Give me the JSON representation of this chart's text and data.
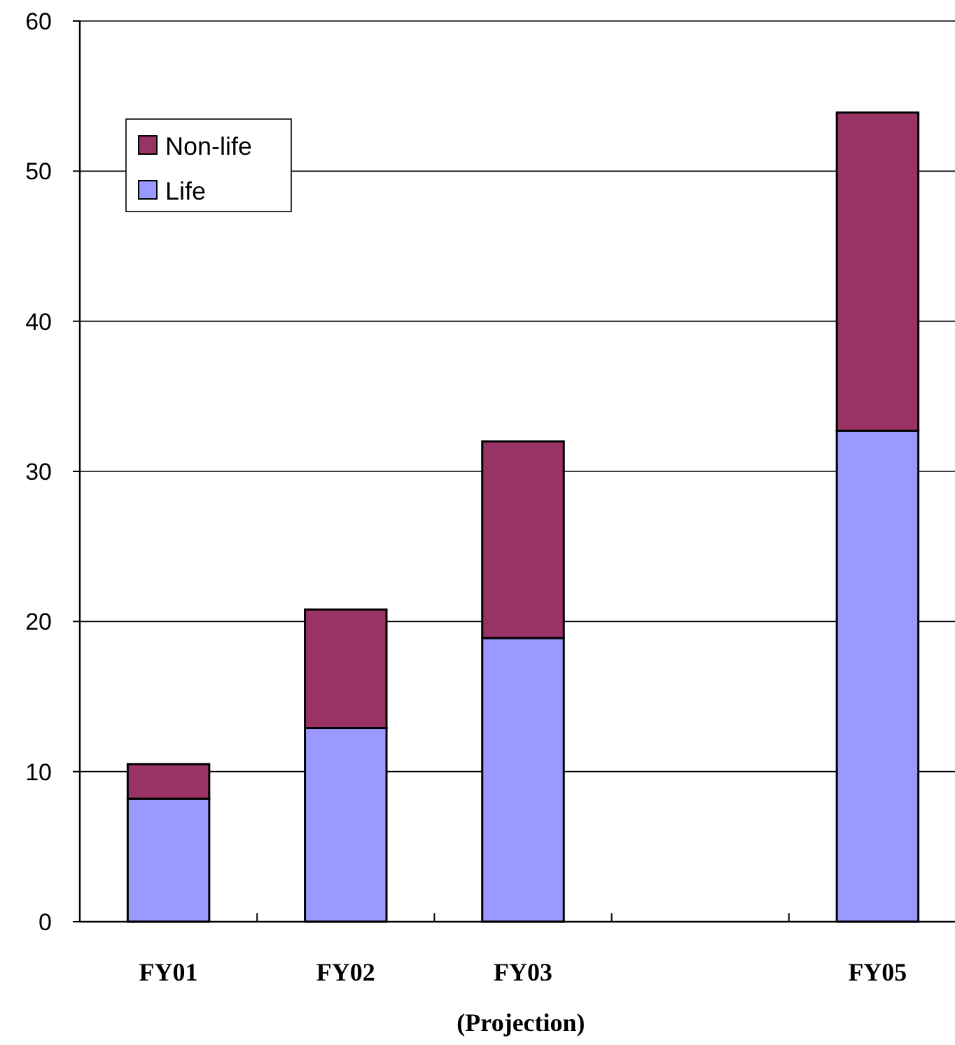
{
  "chart_data": {
    "type": "bar",
    "stacked": true,
    "xlabel": "(Projection)",
    "categories": [
      "FY01",
      "FY02",
      "FY03",
      null,
      "FY05"
    ],
    "series": [
      {
        "name": "Life",
        "color": "#9999ff",
        "values": [
          8.2,
          12.9,
          18.9,
          null,
          32.7
        ]
      },
      {
        "name": "Non-life",
        "color": "#993366",
        "values": [
          2.3,
          7.9,
          13.1,
          null,
          21.2
        ]
      }
    ],
    "ylim": [
      0,
      60
    ],
    "yticks": [
      0,
      10,
      20,
      30,
      40,
      50,
      60
    ],
    "grid": "y",
    "legend": "top left"
  }
}
